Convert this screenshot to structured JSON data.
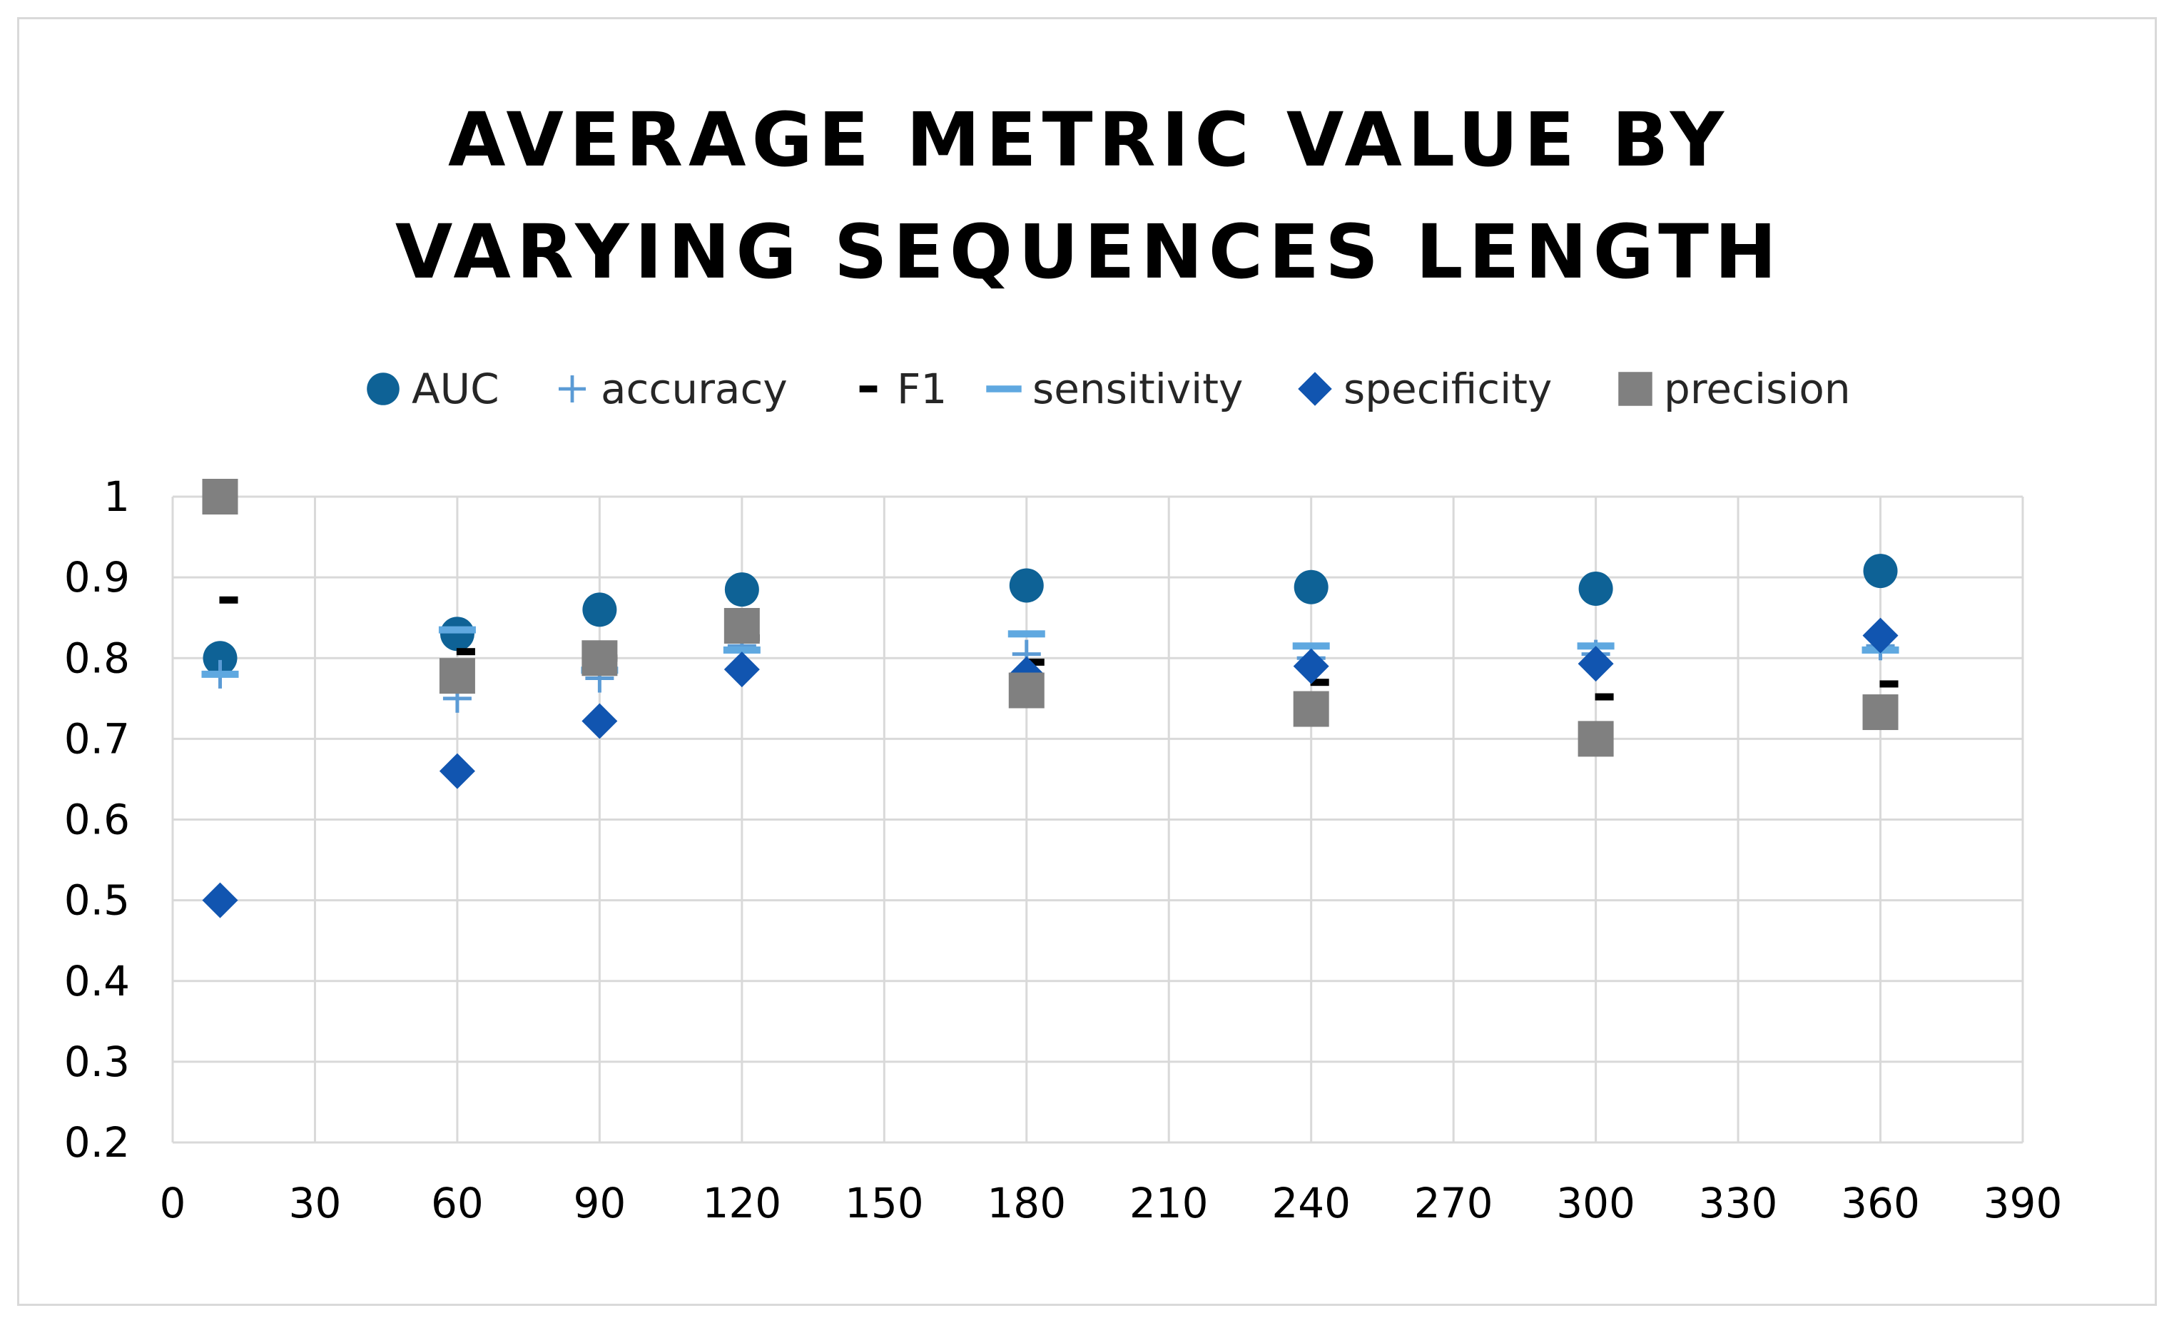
{
  "chart_data": {
    "type": "scatter",
    "title": [
      "AVERAGE METRIC VALUE BY",
      "VARYING SEQUENCES LENGTH"
    ],
    "xlabel": "",
    "ylabel": "",
    "xlim": [
      0,
      390
    ],
    "ylim": [
      0.2,
      1
    ],
    "x_ticks": [
      "0",
      "30",
      "60",
      "90",
      "120",
      "150",
      "180",
      "210",
      "240",
      "270",
      "300",
      "330",
      "360",
      "390"
    ],
    "y_ticks": [
      "0.2",
      "0.3",
      "0.4",
      "0.5",
      "0.6",
      "0.7",
      "0.8",
      "0.9",
      "1"
    ],
    "grid": true,
    "legend_position": "top",
    "x": [
      10,
      60,
      90,
      120,
      180,
      240,
      300,
      360
    ],
    "series": [
      {
        "name": "AUC",
        "marker": "circle",
        "color": "#0e6296",
        "values": [
          0.8,
          0.83,
          0.86,
          0.885,
          0.89,
          0.888,
          0.886,
          0.908
        ]
      },
      {
        "name": "accuracy",
        "marker": "plus",
        "color": "#5b9bd5",
        "values": [
          0.78,
          0.75,
          0.775,
          0.815,
          0.805,
          0.8,
          0.805,
          0.815
        ]
      },
      {
        "name": "F1",
        "marker": "dash",
        "color": "#000000",
        "values": [
          0.872,
          0.808,
          0.8,
          0.825,
          0.795,
          0.77,
          0.752,
          0.768
        ]
      },
      {
        "name": "sensitivity",
        "marker": "bar",
        "color": "#5fa8e0",
        "values": [
          0.78,
          0.835,
          0.785,
          0.81,
          0.83,
          0.815,
          0.815,
          0.81
        ]
      },
      {
        "name": "specificity",
        "marker": "diamond",
        "color": "#1155b0",
        "values": [
          0.5,
          0.66,
          0.722,
          0.786,
          0.78,
          0.79,
          0.793,
          0.828
        ]
      },
      {
        "name": "precision",
        "marker": "square",
        "color": "#808080",
        "values": [
          1.0,
          0.778,
          0.8,
          0.84,
          0.76,
          0.737,
          0.7,
          0.733
        ]
      }
    ]
  }
}
